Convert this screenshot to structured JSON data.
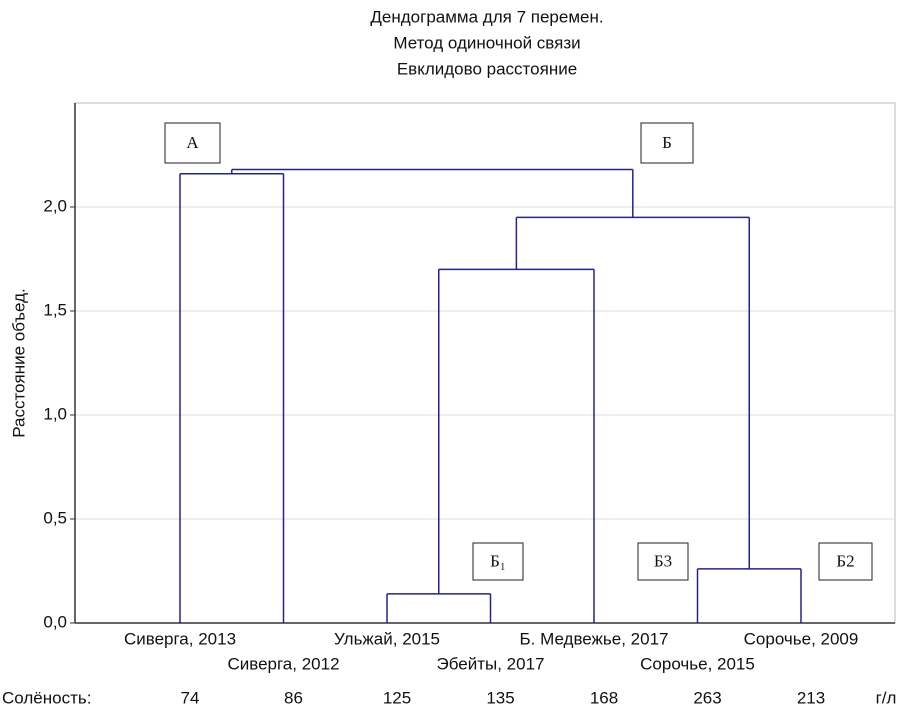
{
  "chart_data": {
    "type": "dendrogram",
    "title": [
      "Дендограмма для 7 перемен.",
      "Метод одиночной связи",
      "Евклидово расстояние"
    ],
    "y_label": "Расстояние объед.",
    "leaves": [
      "Сиверга, 2013",
      "Сиверга, 2012",
      "Ульжай, 2015",
      "Эбейты, 2017",
      "Б. Медвежье, 2017",
      "Сорочье, 2015",
      "Сорочье, 2009"
    ],
    "merges": [
      {
        "children": [
          0,
          1
        ],
        "height": 2.16
      },
      {
        "children": [
          2,
          3
        ],
        "height": 0.14
      },
      {
        "children": [
          5,
          6
        ],
        "height": 0.26
      },
      {
        "children": [
          8,
          4
        ],
        "height": 1.7
      },
      {
        "children": [
          10,
          9
        ],
        "height": 1.95
      },
      {
        "children": [
          7,
          11
        ],
        "height": 2.18
      }
    ],
    "color": "#23238c",
    "ylim": [
      0,
      2.5
    ],
    "yticks": [
      {
        "value": 0,
        "label": "0,0"
      },
      {
        "value": 0.5,
        "label": "0,5"
      },
      {
        "value": 1,
        "label": "1,0"
      },
      {
        "value": 1.5,
        "label": "1,5"
      },
      {
        "value": 2,
        "label": "2,0"
      }
    ],
    "grid": true,
    "salinity": {
      "label": "Солёность:",
      "values": [
        74,
        86,
        125,
        135,
        168,
        263,
        213
      ],
      "unit": "г/л"
    },
    "annotations": [
      "А",
      "Б",
      "Б₁",
      "Б3",
      "Б2"
    ]
  }
}
